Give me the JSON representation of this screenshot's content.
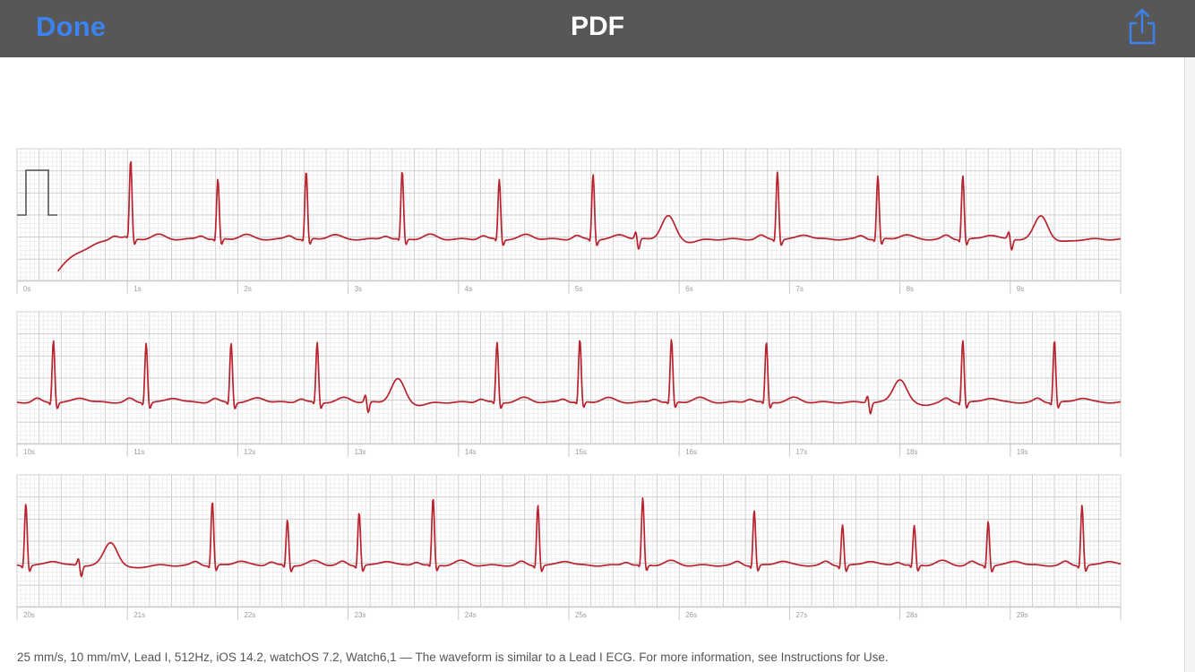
{
  "nav": {
    "done_label": "Done",
    "title": "PDF",
    "share_icon": "share-icon"
  },
  "colors": {
    "navbar_bg": "#575757",
    "done_blue": "#3c82f0",
    "trace_red": "#b8232f",
    "grid_minor": "#e7e7e7",
    "grid_major": "#c9c9c9"
  },
  "ecg": {
    "paper_speed": "25 mm/s",
    "gain": "10 mm/mV",
    "rows": [
      {
        "start_second": 0,
        "tick_labels": [
          "0s",
          "1s",
          "2s",
          "3s",
          "4s",
          "5s",
          "6s",
          "7s",
          "8s",
          "9s"
        ]
      },
      {
        "start_second": 10,
        "tick_labels": [
          "10s",
          "11s",
          "12s",
          "13s",
          "14s",
          "15s",
          "16s",
          "17s",
          "18s",
          "19s"
        ]
      },
      {
        "start_second": 20,
        "tick_labels": [
          "20s",
          "21s",
          "22s",
          "23s",
          "24s",
          "25s",
          "26s",
          "27s",
          "28s",
          "29s"
        ]
      }
    ]
  },
  "footer": {
    "text": "25 mm/s, 10 mm/mV, Lead I, 512Hz, iOS 14.2, watchOS 7.2, Watch6,1 — The waveform is similar to a Lead I ECG. For more information, see Instructions for Use."
  }
}
